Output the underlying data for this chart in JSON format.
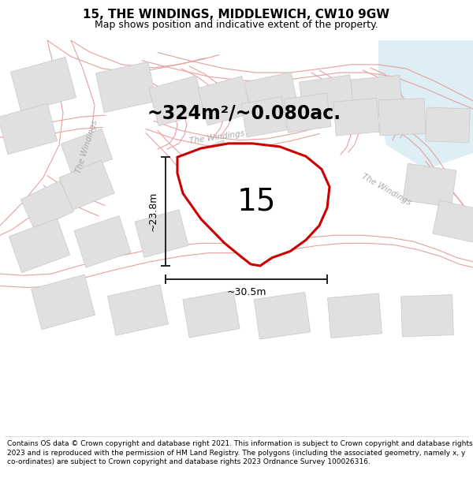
{
  "title": "15, THE WINDINGS, MIDDLEWICH, CW10 9GW",
  "subtitle": "Map shows position and indicative extent of the property.",
  "area_text": "~324m²/~0.080ac.",
  "width_label": "~30.5m",
  "height_label": "~23.8m",
  "plot_number": "15",
  "footer_text": "Contains OS data © Crown copyright and database right 2021. This information is subject to Crown copyright and database rights 2023 and is reproduced with the permission of HM Land Registry. The polygons (including the associated geometry, namely x, y co-ordinates) are subject to Crown copyright and database rights 2023 Ordnance Survey 100026316.",
  "bg_color": "#ffffff",
  "map_bg": "#f7f7f7",
  "road_color": "#e8a0a0",
  "road_fill": "#f0f0f0",
  "plot_fill": "#ffffff",
  "plot_outline": "#cc0000",
  "building_fill": "#e0e0e0",
  "building_outline": "#c8c8c8",
  "water_color": "#ddeef5",
  "road_text_color": "#aaaaaa",
  "dim_color": "#222222",
  "title_fontsize": 11,
  "subtitle_fontsize": 9,
  "area_fontsize": 17,
  "plot_num_fontsize": 28,
  "footer_fontsize": 6.5,
  "road_lw": 0.8,
  "plot_lw": 2.2,
  "building_lw": 0.5
}
